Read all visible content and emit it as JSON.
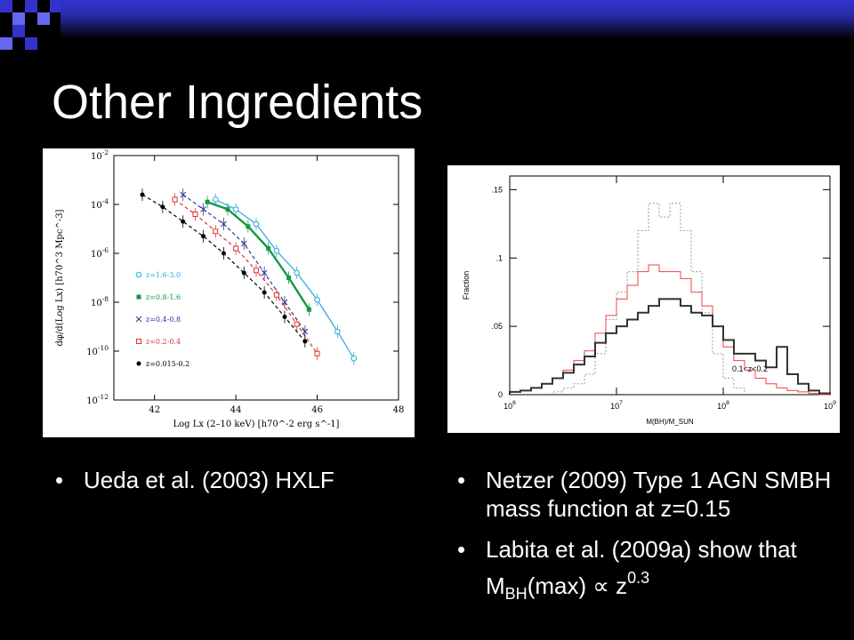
{
  "slide": {
    "title": "Other Ingredients",
    "accent_color": "#3333cc"
  },
  "bullets_left": [
    "Ueda et al. (2003) HXLF"
  ],
  "bullets_right": {
    "item1": "Netzer (2009) Type 1 AGN SMBH mass function at z=0.15",
    "item2_prefix": "Labita et al. (2009a) show that M",
    "item2_sub": "BH",
    "item2_mid": "(max) ",
    "item2_symbol": "∝",
    "item2_z": " z",
    "item2_sup": "0.3"
  },
  "chart_data": [
    {
      "type": "line",
      "title": "",
      "xlabel": "Log Lx (2–10 keV) [h70^-2 erg s^-1]",
      "ylabel": "dφ/d(Log Lx) [h70^3 Mpc^-3]",
      "xlim": [
        41,
        48
      ],
      "ylim_log10": [
        -12,
        -2
      ],
      "x_ticks": [
        "42",
        "44",
        "46",
        "48"
      ],
      "y_ticks": [
        "10^-2",
        "10^-4",
        "10^-6",
        "10^-8",
        "10^-10",
        "10^-12"
      ],
      "y_scale": "log",
      "legend_position": "center-left",
      "series": [
        {
          "name": "z=1.6-3.0",
          "color": "#22aadd",
          "marker": "open-circle",
          "x": [
            43.5,
            44.0,
            44.5,
            45.0,
            45.5,
            46.0,
            46.5,
            46.9
          ],
          "log_y": [
            -3.8,
            -4.2,
            -4.8,
            -5.9,
            -6.8,
            -7.9,
            -9.2,
            -10.3
          ]
        },
        {
          "name": "z=0.8-1.6",
          "color": "#119944",
          "marker": "filled-square",
          "x": [
            43.3,
            43.8,
            44.3,
            44.8,
            45.3,
            45.8
          ],
          "log_y": [
            -3.9,
            -4.2,
            -4.9,
            -5.8,
            -7.0,
            -8.3
          ]
        },
        {
          "name": "z=0.4-0.8",
          "color": "#333399",
          "marker": "cross",
          "x": [
            42.7,
            43.2,
            43.7,
            44.2,
            44.7,
            45.2,
            45.7
          ],
          "log_y": [
            -3.6,
            -4.2,
            -4.8,
            -5.6,
            -6.8,
            -8.0,
            -9.2
          ]
        },
        {
          "name": "z=0.2-0.4",
          "color": "#dd3333",
          "marker": "open-square",
          "x": [
            42.5,
            43.0,
            43.5,
            44.0,
            44.5,
            45.0,
            45.5,
            46.0
          ],
          "log_y": [
            -3.8,
            -4.4,
            -5.1,
            -5.8,
            -6.7,
            -7.7,
            -8.9,
            -10.1
          ]
        },
        {
          "name": "z=0.015-0.2",
          "color": "#000000",
          "marker": "filled-circle",
          "x": [
            41.7,
            42.2,
            42.7,
            43.2,
            43.7,
            44.2,
            44.7,
            45.2,
            45.7
          ],
          "log_y": [
            -3.6,
            -4.1,
            -4.7,
            -5.3,
            -6.0,
            -6.8,
            -7.6,
            -8.6,
            -9.6
          ]
        }
      ]
    },
    {
      "type": "line",
      "title": "",
      "xlabel": "M(BH)/M_SUN",
      "ylabel": "Fraction",
      "annotation": "0.1<z<0.2",
      "x_scale": "log",
      "xlim_log10": [
        6,
        9
      ],
      "ylim": [
        0,
        0.16
      ],
      "x_ticks": [
        "10^6",
        "10^7",
        "10^8",
        "10^9"
      ],
      "y_ticks": [
        "0",
        ".05",
        ".1",
        ".15"
      ],
      "series": [
        {
          "color": "#999999",
          "style": "dotted-step",
          "log_x_edges": [
            6.4,
            6.5,
            6.6,
            6.7,
            6.8,
            6.9,
            7.0,
            7.1,
            7.2,
            7.3,
            7.4,
            7.5,
            7.6,
            7.7,
            7.8,
            7.9,
            8.0,
            8.1,
            8.2
          ],
          "values": [
            0.002,
            0.005,
            0.008,
            0.015,
            0.03,
            0.055,
            0.075,
            0.09,
            0.12,
            0.14,
            0.13,
            0.14,
            0.12,
            0.09,
            0.06,
            0.03,
            0.012,
            0.005
          ]
        },
        {
          "color": "#ee4444",
          "style": "step",
          "log_x_edges": [
            6.0,
            6.1,
            6.2,
            6.3,
            6.4,
            6.5,
            6.6,
            6.7,
            6.8,
            6.9,
            7.0,
            7.1,
            7.2,
            7.3,
            7.4,
            7.5,
            7.6,
            7.7,
            7.8,
            7.9,
            8.0,
            8.1,
            8.2,
            8.3,
            8.4,
            8.5,
            8.6,
            8.7,
            8.8,
            8.9,
            9.0
          ],
          "values": [
            0.002,
            0.003,
            0.005,
            0.008,
            0.012,
            0.018,
            0.025,
            0.032,
            0.045,
            0.058,
            0.07,
            0.08,
            0.09,
            0.095,
            0.09,
            0.09,
            0.085,
            0.075,
            0.065,
            0.05,
            0.035,
            0.025,
            0.018,
            0.012,
            0.008,
            0.005,
            0.003,
            0.002,
            0.001,
            0.0
          ]
        },
        {
          "color": "#333333",
          "style": "thick-step",
          "log_x_edges": [
            6.0,
            6.1,
            6.2,
            6.3,
            6.4,
            6.5,
            6.6,
            6.7,
            6.8,
            6.9,
            7.0,
            7.1,
            7.2,
            7.3,
            7.4,
            7.5,
            7.6,
            7.7,
            7.8,
            7.9,
            8.0,
            8.1,
            8.2,
            8.3,
            8.4,
            8.5,
            8.6,
            8.7,
            8.8,
            8.9,
            9.0
          ],
          "values": [
            0.002,
            0.003,
            0.005,
            0.008,
            0.012,
            0.016,
            0.022,
            0.028,
            0.038,
            0.045,
            0.05,
            0.055,
            0.06,
            0.065,
            0.07,
            0.07,
            0.065,
            0.06,
            0.058,
            0.05,
            0.04,
            0.03,
            0.03,
            0.025,
            0.02,
            0.035,
            0.015,
            0.008,
            0.003,
            0.001
          ]
        }
      ]
    }
  ]
}
